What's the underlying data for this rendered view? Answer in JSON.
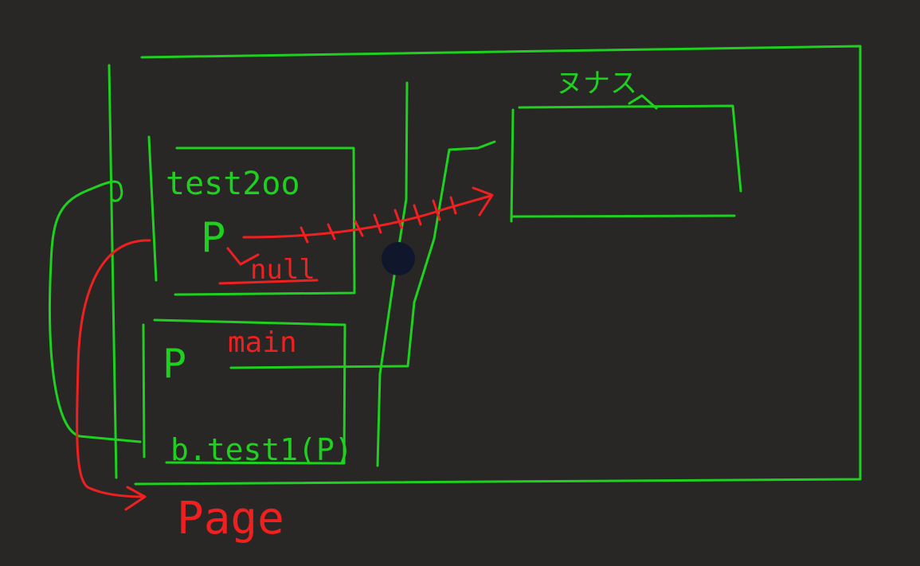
{
  "board": {
    "background": "#282725",
    "ink_green": "#1fd11f",
    "ink_red": "#f02020",
    "cursor_color": "#10172c"
  },
  "labels": {
    "heap_label": "ヌナス",
    "frame_test200": "test2oo",
    "var_p_upper": "P",
    "null_value": "null",
    "frame_main": "main",
    "var_p_lower": "P",
    "call_line": "b.test1(P)",
    "page_label": "Page"
  }
}
